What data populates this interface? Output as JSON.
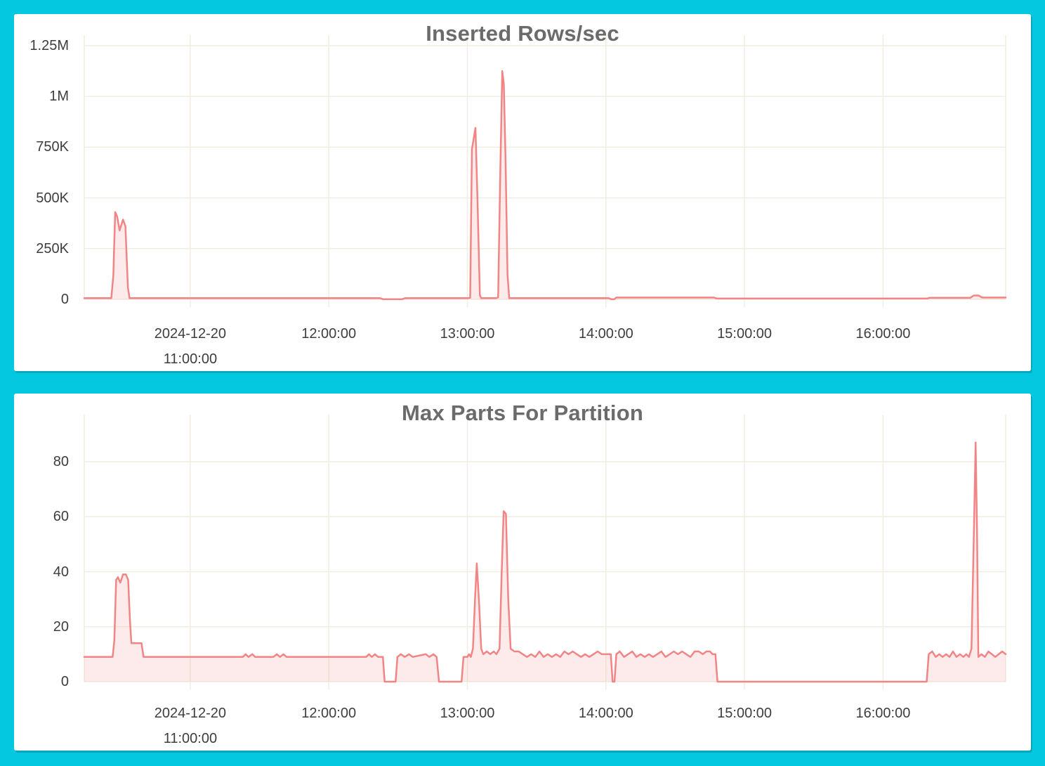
{
  "page": {
    "background_color": "#04c8e0",
    "panel_color": "#ffffff"
  },
  "colors": {
    "line": "#f18585",
    "fill": "rgba(242,133,133,0.16)",
    "grid": "#f0eee1",
    "title_text": "#6b6b6b",
    "tick_text": "#3d3d3d"
  },
  "chart_data": [
    {
      "type": "area",
      "title": "Inserted Rows/sec",
      "xlabel": "",
      "ylabel": "",
      "grid": true,
      "legend": "none",
      "x_domain": [
        10.235,
        16.885
      ],
      "x_ticks": [
        {
          "t": 11,
          "lines": [
            "2024-12-20",
            "11:00:00"
          ]
        },
        {
          "t": 12,
          "lines": [
            "12:00:00"
          ]
        },
        {
          "t": 13,
          "lines": [
            "13:00:00"
          ]
        },
        {
          "t": 14,
          "lines": [
            "14:00:00"
          ]
        },
        {
          "t": 15,
          "lines": [
            "15:00:00"
          ]
        },
        {
          "t": 16,
          "lines": [
            "16:00:00"
          ]
        }
      ],
      "y_ticks": [
        {
          "label": "0",
          "v": 0
        },
        {
          "label": "250K",
          "v": 250000
        },
        {
          "label": "500K",
          "v": 500000
        },
        {
          "label": "750K",
          "v": 750000
        },
        {
          "label": "1M",
          "v": 1000000
        },
        {
          "label": "1.25M",
          "v": 1250000
        }
      ],
      "points": [
        [
          10.235,
          6000
        ],
        [
          10.43,
          6000
        ],
        [
          10.445,
          120000
        ],
        [
          10.458,
          430000
        ],
        [
          10.472,
          408000
        ],
        [
          10.49,
          340000
        ],
        [
          10.515,
          393000
        ],
        [
          10.532,
          360000
        ],
        [
          10.55,
          60000
        ],
        [
          10.562,
          6000
        ],
        [
          12.37,
          6000
        ],
        [
          12.39,
          1000
        ],
        [
          12.53,
          1000
        ],
        [
          12.55,
          6000
        ],
        [
          12.76,
          6000
        ],
        [
          13.005,
          6000
        ],
        [
          13.02,
          8000
        ],
        [
          13.033,
          740000
        ],
        [
          13.058,
          845000
        ],
        [
          13.072,
          520000
        ],
        [
          13.09,
          20000
        ],
        [
          13.1,
          6000
        ],
        [
          13.205,
          6000
        ],
        [
          13.222,
          10000
        ],
        [
          13.238,
          650000
        ],
        [
          13.252,
          1125000
        ],
        [
          13.263,
          1060000
        ],
        [
          13.275,
          700000
        ],
        [
          13.29,
          120000
        ],
        [
          13.302,
          6000
        ],
        [
          14.02,
          6000
        ],
        [
          14.038,
          1000
        ],
        [
          14.06,
          1000
        ],
        [
          14.075,
          9000
        ],
        [
          14.78,
          9000
        ],
        [
          14.8,
          4000
        ],
        [
          16.32,
          4000
        ],
        [
          16.335,
          8000
        ],
        [
          16.63,
          8000
        ],
        [
          16.655,
          19000
        ],
        [
          16.69,
          19000
        ],
        [
          16.715,
          9000
        ],
        [
          16.885,
          9000
        ]
      ]
    },
    {
      "type": "area",
      "title": "Max Parts For Partition",
      "xlabel": "",
      "ylabel": "",
      "grid": true,
      "legend": "none",
      "x_domain": [
        10.235,
        16.885
      ],
      "x_ticks": [
        {
          "t": 11,
          "lines": [
            "2024-12-20",
            "11:00:00"
          ]
        },
        {
          "t": 12,
          "lines": [
            "12:00:00"
          ]
        },
        {
          "t": 13,
          "lines": [
            "13:00:00"
          ]
        },
        {
          "t": 14,
          "lines": [
            "14:00:00"
          ]
        },
        {
          "t": 15,
          "lines": [
            "15:00:00"
          ]
        },
        {
          "t": 16,
          "lines": [
            "16:00:00"
          ]
        }
      ],
      "y_ticks": [
        {
          "label": "0",
          "v": 0
        },
        {
          "label": "20",
          "v": 20
        },
        {
          "label": "40",
          "v": 40
        },
        {
          "label": "60",
          "v": 60
        },
        {
          "label": "80",
          "v": 80
        }
      ],
      "points": [
        [
          10.235,
          9
        ],
        [
          10.44,
          9
        ],
        [
          10.452,
          15
        ],
        [
          10.465,
          37
        ],
        [
          10.478,
          38
        ],
        [
          10.495,
          36
        ],
        [
          10.515,
          39
        ],
        [
          10.535,
          39
        ],
        [
          10.552,
          37
        ],
        [
          10.565,
          22
        ],
        [
          10.575,
          14
        ],
        [
          10.648,
          14
        ],
        [
          10.663,
          9
        ],
        [
          11.38,
          9
        ],
        [
          11.4,
          10
        ],
        [
          11.42,
          9
        ],
        [
          11.448,
          10
        ],
        [
          11.468,
          9
        ],
        [
          11.6,
          9
        ],
        [
          11.625,
          10
        ],
        [
          11.648,
          9
        ],
        [
          11.672,
          10
        ],
        [
          11.695,
          9
        ],
        [
          12.27,
          9
        ],
        [
          12.29,
          10
        ],
        [
          12.31,
          9
        ],
        [
          12.333,
          10
        ],
        [
          12.355,
          9
        ],
        [
          12.39,
          9
        ],
        [
          12.403,
          0
        ],
        [
          12.482,
          0
        ],
        [
          12.495,
          9
        ],
        [
          12.52,
          10
        ],
        [
          12.548,
          9
        ],
        [
          12.578,
          10
        ],
        [
          12.605,
          9
        ],
        [
          12.7,
          10
        ],
        [
          12.725,
          9
        ],
        [
          12.755,
          10
        ],
        [
          12.778,
          9
        ],
        [
          12.795,
          0
        ],
        [
          12.958,
          0
        ],
        [
          12.972,
          9
        ],
        [
          13.0,
          9
        ],
        [
          13.012,
          10
        ],
        [
          13.025,
          9
        ],
        [
          13.04,
          12
        ],
        [
          13.055,
          30
        ],
        [
          13.068,
          43
        ],
        [
          13.085,
          28
        ],
        [
          13.1,
          12
        ],
        [
          13.115,
          10
        ],
        [
          13.14,
          11
        ],
        [
          13.165,
          10
        ],
        [
          13.19,
          11
        ],
        [
          13.21,
          10
        ],
        [
          13.232,
          12
        ],
        [
          13.248,
          40
        ],
        [
          13.262,
          62
        ],
        [
          13.278,
          61
        ],
        [
          13.295,
          30
        ],
        [
          13.312,
          12
        ],
        [
          13.34,
          11
        ],
        [
          13.37,
          11
        ],
        [
          13.4,
          10
        ],
        [
          13.43,
          9
        ],
        [
          13.46,
          10
        ],
        [
          13.49,
          9
        ],
        [
          13.52,
          11
        ],
        [
          13.55,
          9
        ],
        [
          13.58,
          10
        ],
        [
          13.61,
          9
        ],
        [
          13.64,
          10
        ],
        [
          13.67,
          9
        ],
        [
          13.7,
          11
        ],
        [
          13.73,
          10
        ],
        [
          13.76,
          11
        ],
        [
          13.79,
          10
        ],
        [
          13.82,
          9
        ],
        [
          13.85,
          10
        ],
        [
          13.88,
          9
        ],
        [
          13.91,
          10
        ],
        [
          13.94,
          11
        ],
        [
          13.97,
          10
        ],
        [
          14.0,
          10
        ],
        [
          14.02,
          10
        ],
        [
          14.035,
          10
        ],
        [
          14.048,
          0
        ],
        [
          14.062,
          0
        ],
        [
          14.075,
          10
        ],
        [
          14.1,
          11
        ],
        [
          14.13,
          9
        ],
        [
          14.16,
          10
        ],
        [
          14.19,
          11
        ],
        [
          14.22,
          9
        ],
        [
          14.25,
          10
        ],
        [
          14.28,
          9
        ],
        [
          14.31,
          10
        ],
        [
          14.34,
          9
        ],
        [
          14.37,
          10
        ],
        [
          14.4,
          11
        ],
        [
          14.43,
          9
        ],
        [
          14.46,
          10
        ],
        [
          14.49,
          11
        ],
        [
          14.52,
          10
        ],
        [
          14.55,
          11
        ],
        [
          14.58,
          10
        ],
        [
          14.61,
          9
        ],
        [
          14.64,
          11
        ],
        [
          14.67,
          11
        ],
        [
          14.7,
          10
        ],
        [
          14.725,
          11
        ],
        [
          14.75,
          11
        ],
        [
          14.77,
          10
        ],
        [
          14.79,
          10
        ],
        [
          14.805,
          0
        ],
        [
          16.315,
          0
        ],
        [
          16.33,
          10
        ],
        [
          16.355,
          11
        ],
        [
          16.38,
          9
        ],
        [
          16.405,
          10
        ],
        [
          16.43,
          9
        ],
        [
          16.455,
          10
        ],
        [
          16.48,
          9
        ],
        [
          16.505,
          11
        ],
        [
          16.53,
          9
        ],
        [
          16.555,
          10
        ],
        [
          16.58,
          9
        ],
        [
          16.6,
          10
        ],
        [
          16.62,
          9
        ],
        [
          16.638,
          12
        ],
        [
          16.658,
          60
        ],
        [
          16.668,
          87
        ],
        [
          16.678,
          55
        ],
        [
          16.688,
          9
        ],
        [
          16.71,
          10
        ],
        [
          16.735,
          9
        ],
        [
          16.76,
          11
        ],
        [
          16.785,
          10
        ],
        [
          16.81,
          9
        ],
        [
          16.835,
          10
        ],
        [
          16.86,
          11
        ],
        [
          16.885,
          10
        ]
      ]
    }
  ]
}
